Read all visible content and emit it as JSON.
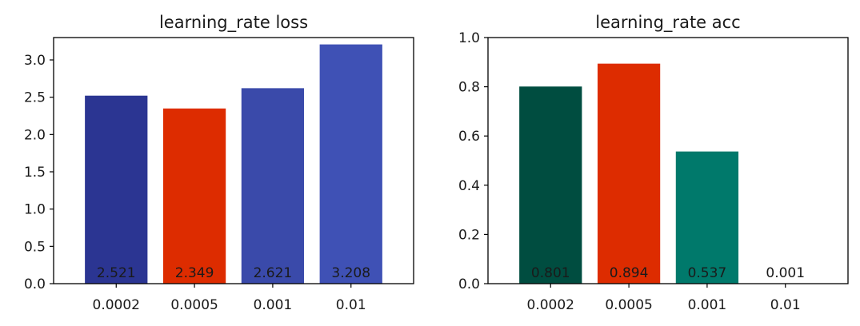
{
  "chart_data": [
    {
      "type": "bar",
      "title": "learning_rate loss",
      "xlabel": "",
      "ylabel": "",
      "categories": [
        "0.0002",
        "0.0005",
        "0.001",
        "0.01"
      ],
      "values": [
        2.521,
        2.349,
        2.621,
        3.208
      ],
      "value_labels": [
        "2.521",
        "2.349",
        "2.621",
        "3.208"
      ],
      "colors": [
        "#2b3592",
        "#dd2c00",
        "#3a4aaa",
        "#3f51b5"
      ],
      "ylim": [
        0,
        3.3
      ],
      "yticks": [
        0.0,
        0.5,
        1.0,
        1.5,
        2.0,
        2.5,
        3.0
      ],
      "ytick_labels": [
        "0.0",
        "0.5",
        "1.0",
        "1.5",
        "2.0",
        "2.5",
        "3.0"
      ],
      "grid": false
    },
    {
      "type": "bar",
      "title": "learning_rate acc",
      "xlabel": "",
      "ylabel": "",
      "categories": [
        "0.0002",
        "0.0005",
        "0.001",
        "0.01"
      ],
      "values": [
        0.801,
        0.894,
        0.537,
        0.001
      ],
      "value_labels": [
        "0.801",
        "0.894",
        "0.537",
        "0.001"
      ],
      "colors": [
        "#004d40",
        "#dd2c00",
        "#00796b",
        "#00897b"
      ],
      "ylim": [
        0,
        1.0
      ],
      "yticks": [
        0.0,
        0.2,
        0.4,
        0.6,
        0.8,
        1.0
      ],
      "ytick_labels": [
        "0.0",
        "0.2",
        "0.4",
        "0.6",
        "0.8",
        "1.0"
      ],
      "grid": false
    }
  ]
}
